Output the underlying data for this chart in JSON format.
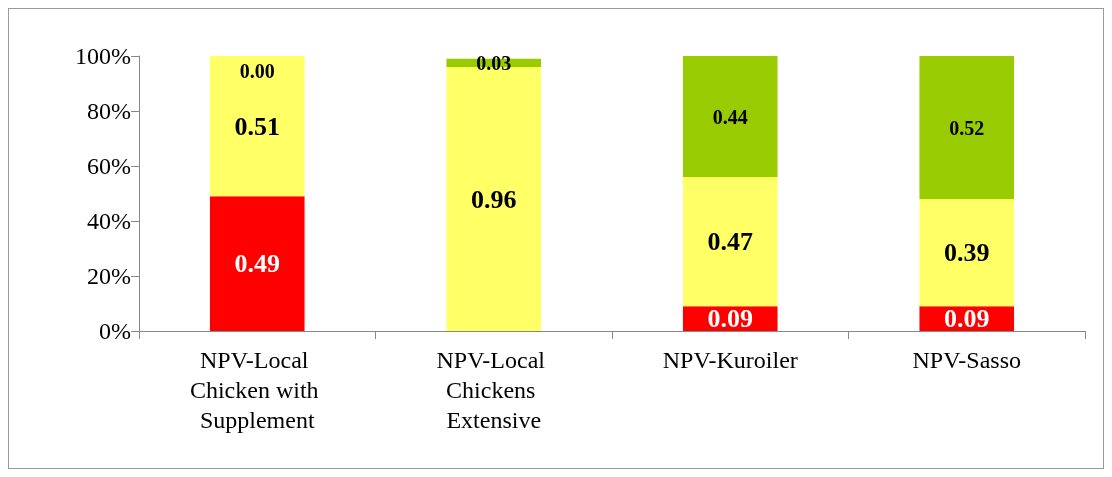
{
  "chart_data": {
    "type": "bar",
    "stacked": true,
    "categories": [
      "NPV-Local Chicken with Supplement",
      "NPV-Local Chickens Extensive",
      "NPV-Kuroiler",
      "NPV-Sasso"
    ],
    "ylim": [
      0,
      1
    ],
    "yticks": [
      {
        "value": 0,
        "label": "0%"
      },
      {
        "value": 0.2,
        "label": "20%"
      },
      {
        "value": 0.4,
        "label": "40%"
      },
      {
        "value": 0.6,
        "label": "60%"
      },
      {
        "value": 0.8,
        "label": "80%"
      },
      {
        "value": 1,
        "label": "100%"
      }
    ],
    "grid": false,
    "series": [
      {
        "color": "#ff0000",
        "values": [
          0.49,
          0,
          0.09,
          0.09
        ],
        "value_labels": [
          "0.49",
          null,
          "0.09",
          "0.09"
        ]
      },
      {
        "color": "#ffff66",
        "values": [
          0.51,
          0.96,
          0.47,
          0.39
        ],
        "value_labels": [
          "0.51",
          "0.96",
          "0.47",
          "0.39"
        ]
      },
      {
        "color": "#99cc00",
        "values": [
          0,
          0.03,
          0.44,
          0.52
        ],
        "value_labels": [
          "0.00",
          "0.03",
          "0.44",
          "0.52"
        ]
      }
    ]
  }
}
